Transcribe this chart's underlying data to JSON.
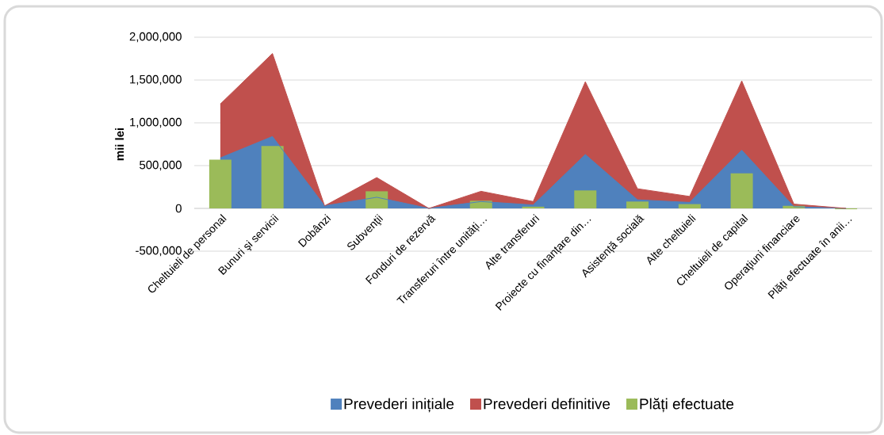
{
  "chart_data": {
    "type": "area",
    "ylabel": "mii lei",
    "categories": [
      "Cheltuieli de personal",
      "Bunuri şi servicii",
      "Dobânzi",
      "Subvenţii",
      "Fonduri de rezervă",
      "Transferuri între unități…",
      "Alte transferuri",
      "Proiecte cu finanțare din…",
      "Asistență socială",
      "Alte cheltuieli",
      "Cheltuieli de capital",
      "Operaţiuni financiare",
      "Plăți efectuate în anii…"
    ],
    "series": [
      {
        "name": "Prevederi inițiale",
        "color": "#4f81bd",
        "values": [
          590000,
          840000,
          30000,
          130000,
          0,
          80000,
          40000,
          630000,
          100000,
          70000,
          680000,
          20000,
          0
        ]
      },
      {
        "name": "Prevederi definitive",
        "color": "#c0504d",
        "values": [
          1220000,
          1810000,
          30000,
          360000,
          0,
          200000,
          80000,
          1480000,
          230000,
          140000,
          1490000,
          50000,
          0
        ]
      },
      {
        "name": "Plăți efectuate",
        "type": "bar",
        "color": "#9bbb59",
        "values": [
          570000,
          730000,
          0,
          200000,
          0,
          90000,
          20000,
          210000,
          80000,
          50000,
          410000,
          30000,
          -10000
        ]
      }
    ],
    "ylim": [
      -500000,
      2000000
    ],
    "yticks": [
      {
        "value": -500000,
        "label": "-500,000"
      },
      0,
      {
        "value": 500000,
        "label": "500,000"
      },
      {
        "value": 1000000,
        "label": "1,000,000"
      },
      {
        "value": 1500000,
        "label": "1,500,000"
      },
      {
        "value": 2000000,
        "label": "2,000,000"
      }
    ],
    "grid": "y",
    "legend": "bottom"
  }
}
